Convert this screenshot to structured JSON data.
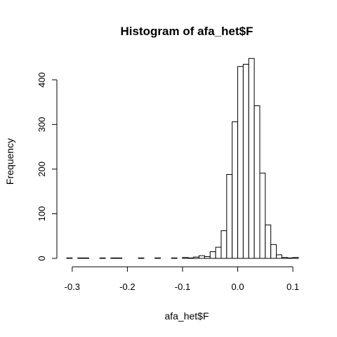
{
  "chart_data": {
    "type": "bar",
    "title": "Histogram of afa_het$F",
    "xlabel": "afa_het$F",
    "ylabel": "Frequency",
    "bin_width": 0.01,
    "xlim": [
      -0.31,
      0.11
    ],
    "ylim": [
      0,
      450
    ],
    "x_ticks": [
      -0.3,
      -0.2,
      -0.1,
      0.0,
      0.1
    ],
    "x_tick_labels": [
      "-0.3",
      "-0.2",
      "-0.1",
      "0.0",
      "0.1"
    ],
    "y_ticks": [
      0,
      100,
      200,
      300,
      400
    ],
    "y_tick_labels": [
      "0",
      "100",
      "200",
      "300",
      "400"
    ],
    "grid": false,
    "legend": "none",
    "bins": [
      {
        "start": -0.31,
        "end": -0.3,
        "count": 1
      },
      {
        "start": -0.3,
        "end": -0.29,
        "count": 0
      },
      {
        "start": -0.29,
        "end": -0.28,
        "count": 1
      },
      {
        "start": -0.28,
        "end": -0.27,
        "count": 1
      },
      {
        "start": -0.27,
        "end": -0.26,
        "count": 0
      },
      {
        "start": -0.26,
        "end": -0.25,
        "count": 0
      },
      {
        "start": -0.25,
        "end": -0.24,
        "count": 1
      },
      {
        "start": -0.24,
        "end": -0.23,
        "count": 0
      },
      {
        "start": -0.23,
        "end": -0.22,
        "count": 1
      },
      {
        "start": -0.22,
        "end": -0.21,
        "count": 1
      },
      {
        "start": -0.21,
        "end": -0.2,
        "count": 0
      },
      {
        "start": -0.2,
        "end": -0.19,
        "count": 0
      },
      {
        "start": -0.19,
        "end": -0.18,
        "count": 0
      },
      {
        "start": -0.18,
        "end": -0.17,
        "count": 1
      },
      {
        "start": -0.17,
        "end": -0.16,
        "count": 0
      },
      {
        "start": -0.16,
        "end": -0.15,
        "count": 0
      },
      {
        "start": -0.15,
        "end": -0.14,
        "count": 1
      },
      {
        "start": -0.14,
        "end": -0.13,
        "count": 0
      },
      {
        "start": -0.13,
        "end": -0.12,
        "count": 0
      },
      {
        "start": -0.12,
        "end": -0.11,
        "count": 1
      },
      {
        "start": -0.11,
        "end": -0.1,
        "count": 0
      },
      {
        "start": -0.1,
        "end": -0.09,
        "count": 2
      },
      {
        "start": -0.09,
        "end": -0.08,
        "count": 1
      },
      {
        "start": -0.08,
        "end": -0.07,
        "count": 3
      },
      {
        "start": -0.07,
        "end": -0.06,
        "count": 6
      },
      {
        "start": -0.06,
        "end": -0.05,
        "count": 4
      },
      {
        "start": -0.05,
        "end": -0.04,
        "count": 15
      },
      {
        "start": -0.04,
        "end": -0.03,
        "count": 25
      },
      {
        "start": -0.03,
        "end": -0.02,
        "count": 62
      },
      {
        "start": -0.02,
        "end": -0.01,
        "count": 188
      },
      {
        "start": -0.01,
        "end": 0.0,
        "count": 306
      },
      {
        "start": 0.0,
        "end": 0.01,
        "count": 430
      },
      {
        "start": 0.01,
        "end": 0.02,
        "count": 435
      },
      {
        "start": 0.02,
        "end": 0.03,
        "count": 448
      },
      {
        "start": 0.03,
        "end": 0.04,
        "count": 342
      },
      {
        "start": 0.04,
        "end": 0.05,
        "count": 191
      },
      {
        "start": 0.05,
        "end": 0.06,
        "count": 75
      },
      {
        "start": 0.06,
        "end": 0.07,
        "count": 31
      },
      {
        "start": 0.07,
        "end": 0.08,
        "count": 8
      },
      {
        "start": 0.08,
        "end": 0.09,
        "count": 2
      },
      {
        "start": 0.09,
        "end": 0.1,
        "count": 1
      },
      {
        "start": 0.1,
        "end": 0.11,
        "count": 2
      }
    ]
  }
}
